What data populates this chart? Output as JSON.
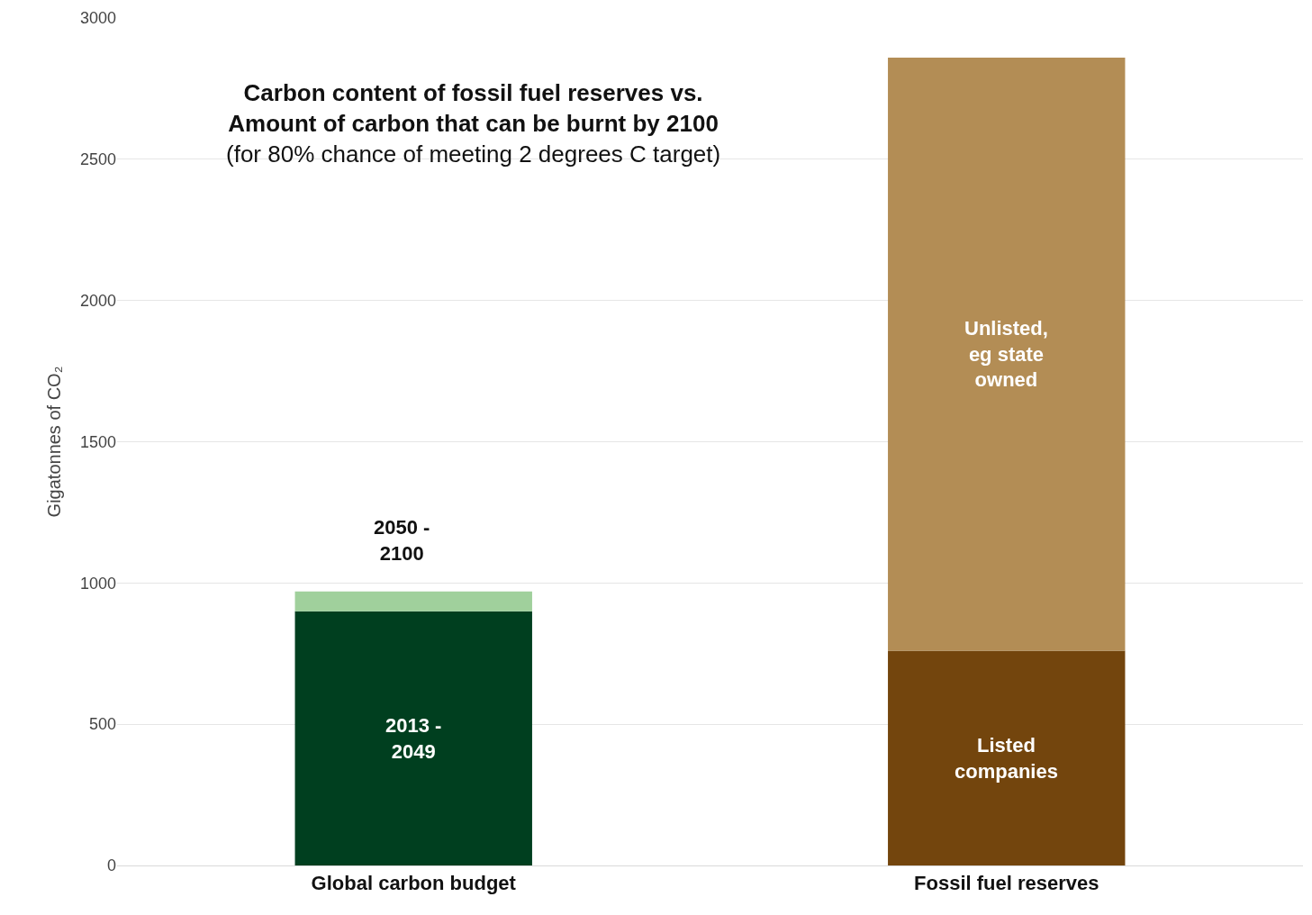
{
  "chart_data": {
    "type": "bar",
    "stacked": true,
    "title": "Carbon content of fossil fuel reserves vs.\nAmount of carbon that can be burnt by 2100",
    "subtitle": "(for 80% chance of meeting 2 degrees C target)",
    "ylabel": "Gigatonnes of CO₂",
    "categories": [
      "Global carbon budget",
      "Fossil fuel reserves"
    ],
    "series": [
      {
        "name": "2013 -\n2049",
        "color": "#003f1f",
        "values": [
          900,
          null
        ]
      },
      {
        "name": "2050 -\n2100",
        "color": "#a0d09c",
        "values": [
          70,
          null
        ]
      },
      {
        "name": "Listed\ncompanies",
        "color": "#73450d",
        "values": [
          null,
          760
        ]
      },
      {
        "name": "Unlisted,\neg state\nowned",
        "color": "#b38d55",
        "values": [
          null,
          2100
        ]
      }
    ],
    "ylim": [
      0,
      3000
    ],
    "yticks": [
      0,
      500,
      1000,
      1500,
      2000,
      2500,
      3000
    ],
    "grid": "y",
    "legend": false
  }
}
